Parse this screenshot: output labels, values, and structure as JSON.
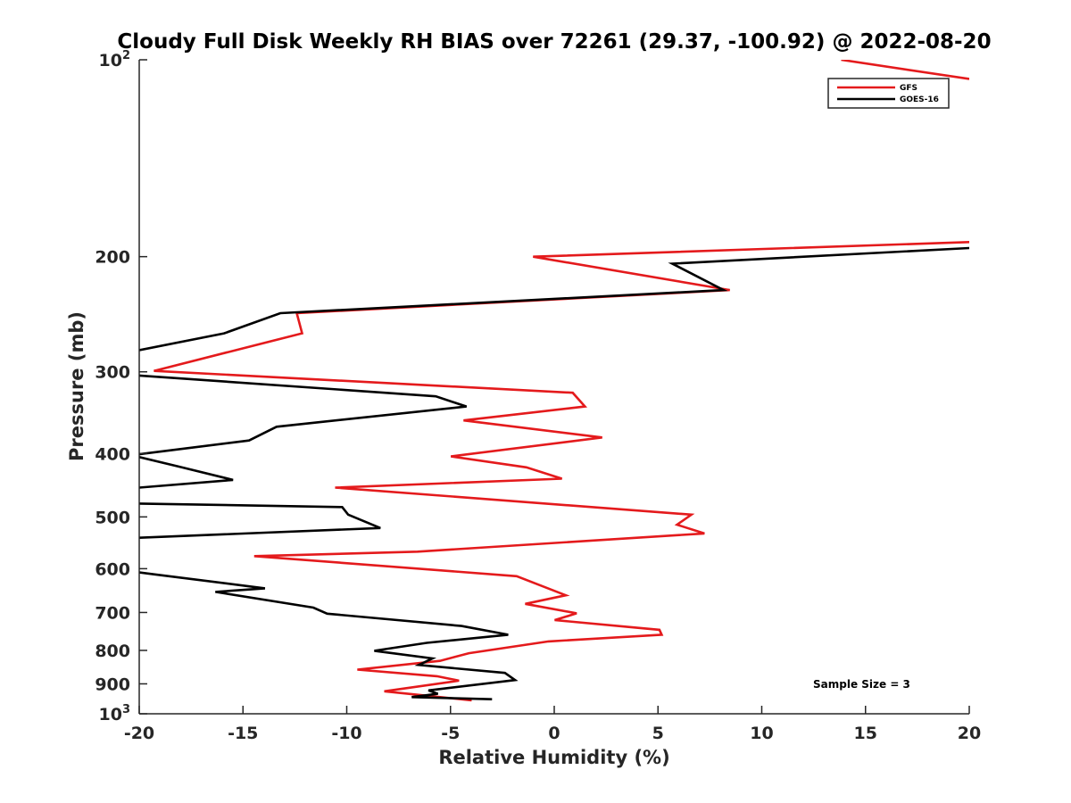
{
  "chart_data": {
    "type": "line",
    "title": "Cloudy Full Disk Weekly RH BIAS over 72261 (29.37, -100.92) @ 2022-08-20",
    "xlabel": "Relative Humidity (%)",
    "ylabel": "Pressure (mb)",
    "xlim": [
      -20,
      20
    ],
    "ylim": [
      100,
      1000
    ],
    "y_scale": "log",
    "y_reversed": true,
    "x_ticks": [
      "-20",
      "-15",
      "-10",
      "-5",
      "0",
      "5",
      "10",
      "15",
      "20"
    ],
    "y_ticks": [
      {
        "value": 100,
        "base": "10",
        "exp": "2",
        "label": ""
      },
      {
        "value": 200,
        "label": "200"
      },
      {
        "value": 300,
        "label": "300"
      },
      {
        "value": 400,
        "label": "400"
      },
      {
        "value": 500,
        "label": "500"
      },
      {
        "value": 600,
        "label": "600"
      },
      {
        "value": 700,
        "label": "700"
      },
      {
        "value": 800,
        "label": "800"
      },
      {
        "value": 900,
        "label": "900"
      },
      {
        "value": 1000,
        "base": "10",
        "exp": "3",
        "label": ""
      }
    ],
    "legend_position": "top-right",
    "annotation": "Sample Size = 3",
    "series": [
      {
        "name": "GFS",
        "color": "#e41a1c",
        "points": [
          [
            -3.98,
            954
          ],
          [
            -8.19,
            924
          ],
          [
            -4.59,
            890
          ],
          [
            -5.65,
            876
          ],
          [
            -9.49,
            856
          ],
          [
            -5.51,
            830
          ],
          [
            -4.11,
            808
          ],
          [
            -0.28,
            775
          ],
          [
            5.18,
            757
          ],
          [
            5.07,
            744
          ],
          [
            0.02,
            719
          ],
          [
            1.08,
            702
          ],
          [
            -1.4,
            679
          ],
          [
            0.56,
            659
          ],
          [
            -1.81,
            616
          ],
          [
            -14.46,
            574
          ],
          [
            -6.59,
            565
          ],
          [
            7.24,
            530
          ],
          [
            5.92,
            514
          ],
          [
            6.61,
            496
          ],
          [
            -10.56,
            451
          ],
          [
            0.37,
            437
          ],
          [
            -1.34,
            420
          ],
          [
            -4.98,
            404
          ],
          [
            2.31,
            378
          ],
          [
            -4.37,
            356
          ],
          [
            1.48,
            339
          ],
          [
            0.89,
            323
          ],
          [
            -19.29,
            299
          ],
          [
            -12.15,
            262
          ],
          [
            -12.41,
            244
          ],
          [
            8.46,
            225
          ],
          [
            -1.02,
            200
          ],
          [
            20.0,
            190
          ],
          [
            null,
            null
          ],
          [
            13.83,
            100
          ],
          [
            20.0,
            107
          ]
        ]
      },
      {
        "name": "GOES-16",
        "color": "#000000",
        "points": [
          [
            -3.0,
            950
          ],
          [
            -6.87,
            943
          ],
          [
            -5.61,
            932
          ],
          [
            -6.06,
            921
          ],
          [
            -1.89,
            888
          ],
          [
            -2.38,
            866
          ],
          [
            -6.53,
            842
          ],
          [
            -5.87,
            823
          ],
          [
            -8.67,
            801
          ],
          [
            -6.14,
            779
          ],
          [
            -2.22,
            757
          ],
          [
            -4.47,
            734
          ],
          [
            -10.94,
            703
          ],
          [
            -11.61,
            688
          ],
          [
            -16.33,
            651
          ],
          [
            -13.94,
            643
          ],
          [
            -19.29,
            612
          ],
          [
            -20.0,
            608
          ],
          [
            null,
            null
          ],
          [
            -20.0,
            538
          ],
          [
            -8.38,
            520
          ],
          [
            -9.93,
            496
          ],
          [
            -10.22,
            483
          ],
          [
            -20.0,
            477
          ],
          [
            null,
            null
          ],
          [
            -20.0,
            451
          ],
          [
            -15.48,
            439
          ],
          [
            -18.06,
            419
          ],
          [
            -20.0,
            405
          ],
          [
            null,
            null
          ],
          [
            -20.0,
            401
          ],
          [
            -14.71,
            382
          ],
          [
            -13.38,
            364
          ],
          [
            -4.23,
            339
          ],
          [
            -5.71,
            327
          ],
          [
            -20.0,
            304
          ],
          [
            null,
            null
          ],
          [
            -20.0,
            278
          ],
          [
            -15.91,
            262
          ],
          [
            -13.2,
            244
          ],
          [
            8.16,
            225
          ],
          [
            5.69,
            205
          ],
          [
            20.0,
            194
          ]
        ]
      }
    ]
  }
}
